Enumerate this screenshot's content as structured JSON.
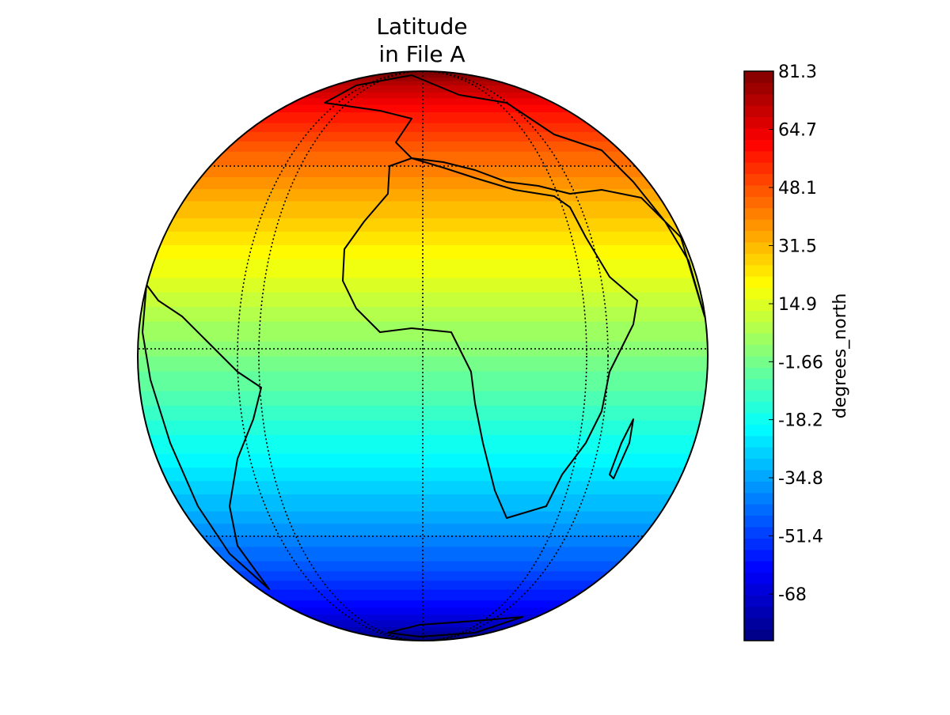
{
  "title_lines": [
    "Latitude",
    "in File A"
  ],
  "colorbar": {
    "label": "degrees_north",
    "lim": [
      -81.3,
      81.3
    ],
    "ticks": [
      81.3,
      64.7,
      48.1,
      31.5,
      14.9,
      -1.66,
      -18.2,
      -34.8,
      -51.4,
      -68
    ]
  }
}
